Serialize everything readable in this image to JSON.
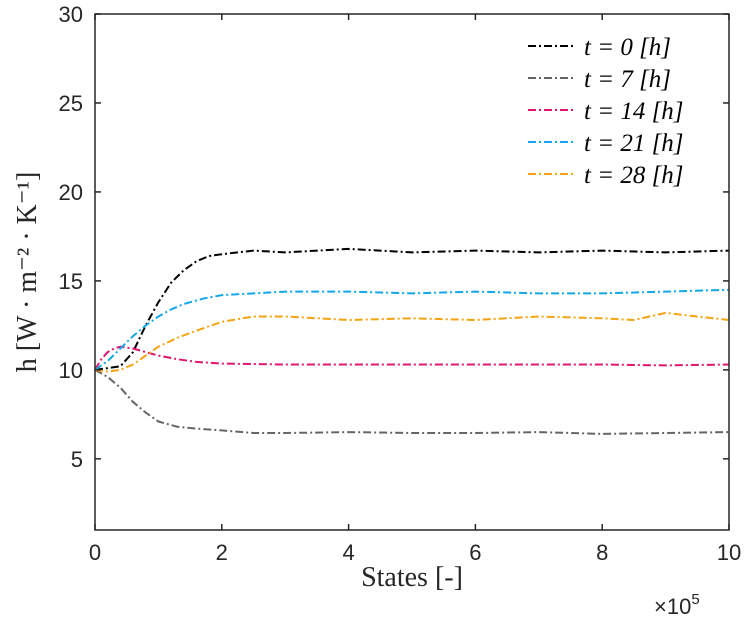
{
  "chart_data": {
    "type": "line",
    "xlabel": "States  [-]",
    "ylabel": "h [W · m⁻² · K⁻¹]",
    "x_multiplier": {
      "base": "×10",
      "exponent": "5"
    },
    "xlim": [
      0,
      1000000
    ],
    "ylim": [
      1,
      30
    ],
    "x_ticks": [
      0,
      200000,
      400000,
      600000,
      800000,
      1000000
    ],
    "x_tick_labels": [
      "0",
      "2",
      "4",
      "6",
      "8",
      "10"
    ],
    "y_ticks": [
      5,
      10,
      15,
      20,
      25,
      30
    ],
    "y_tick_labels": [
      "5",
      "10",
      "15",
      "20",
      "25",
      "30"
    ],
    "grid": false,
    "legend_position": "top-right",
    "line_style": "dash-dot",
    "series": [
      {
        "name": "t = 0 [h]",
        "color": "#000000",
        "x": [
          0,
          40000,
          60000,
          80000,
          100000,
          120000,
          140000,
          160000,
          180000,
          200000,
          250000,
          300000,
          400000,
          500000,
          600000,
          700000,
          800000,
          900000,
          1000000
        ],
        "y": [
          10.0,
          10.2,
          11.0,
          12.5,
          13.8,
          14.9,
          15.6,
          16.1,
          16.4,
          16.5,
          16.7,
          16.6,
          16.8,
          16.6,
          16.7,
          16.6,
          16.7,
          16.6,
          16.7
        ]
      },
      {
        "name": "t = 7 [h]",
        "color": "#666666",
        "x": [
          0,
          20000,
          40000,
          60000,
          80000,
          100000,
          130000,
          160000,
          200000,
          250000,
          300000,
          400000,
          500000,
          600000,
          700000,
          800000,
          900000,
          1000000
        ],
        "y": [
          10.0,
          9.6,
          9.0,
          8.2,
          7.6,
          7.1,
          6.8,
          6.7,
          6.6,
          6.45,
          6.45,
          6.5,
          6.45,
          6.45,
          6.5,
          6.4,
          6.45,
          6.5
        ]
      },
      {
        "name": "t = 14 [h]",
        "color": "#E0166E",
        "x": [
          0,
          10000,
          20000,
          30000,
          40000,
          60000,
          80000,
          100000,
          130000,
          160000,
          200000,
          300000,
          400000,
          500000,
          600000,
          700000,
          800000,
          900000,
          1000000
        ],
        "y": [
          10.0,
          10.6,
          11.0,
          11.2,
          11.3,
          11.2,
          11.0,
          10.8,
          10.6,
          10.45,
          10.35,
          10.3,
          10.3,
          10.3,
          10.3,
          10.3,
          10.3,
          10.25,
          10.3
        ]
      },
      {
        "name": "t = 21 [h]",
        "color": "#14A7E8",
        "x": [
          0,
          20000,
          40000,
          60000,
          80000,
          100000,
          120000,
          140000,
          170000,
          200000,
          250000,
          300000,
          400000,
          500000,
          600000,
          700000,
          800000,
          900000,
          1000000
        ],
        "y": [
          10.0,
          10.5,
          11.2,
          11.9,
          12.5,
          13.0,
          13.4,
          13.7,
          14.0,
          14.2,
          14.3,
          14.4,
          14.4,
          14.3,
          14.4,
          14.3,
          14.3,
          14.4,
          14.5
        ]
      },
      {
        "name": "t = 28 [h]",
        "color": "#F5A312",
        "x": [
          0,
          20000,
          40000,
          60000,
          80000,
          100000,
          130000,
          160000,
          200000,
          250000,
          300000,
          400000,
          500000,
          600000,
          700000,
          800000,
          850000,
          900000,
          950000,
          1000000
        ],
        "y": [
          10.0,
          9.9,
          10.0,
          10.3,
          10.8,
          11.3,
          11.8,
          12.2,
          12.7,
          13.0,
          13.0,
          12.8,
          12.9,
          12.8,
          13.0,
          12.9,
          12.8,
          13.2,
          13.0,
          12.8
        ]
      }
    ]
  }
}
